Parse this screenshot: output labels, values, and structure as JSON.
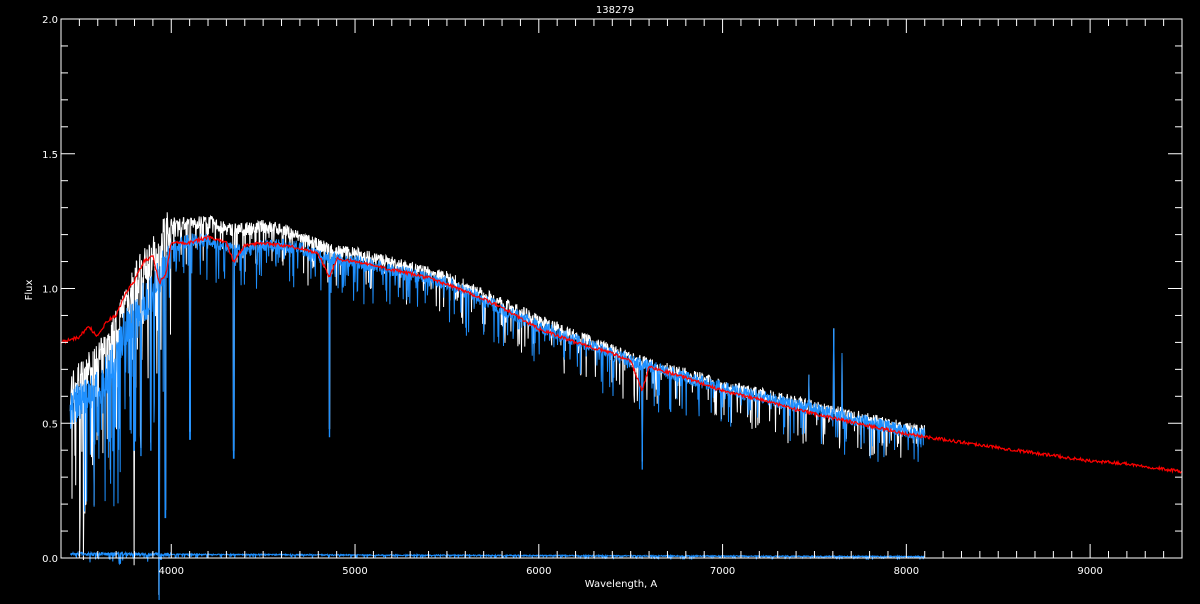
{
  "chart_data": {
    "type": "line",
    "title": "138279",
    "xlabel": "Wavelength, A",
    "ylabel": "Flux",
    "xlim": [
      3400,
      9500
    ],
    "ylim": [
      0.0,
      2.0
    ],
    "x_ticks": [
      "4000",
      "5000",
      "6000",
      "7000",
      "8000",
      "9000"
    ],
    "y_ticks": [
      "0.0",
      "0.5",
      "1.0",
      "1.5",
      "2.0"
    ],
    "grid": false,
    "background": "#000000",
    "series": [
      {
        "color": "#ff0000",
        "x": [
          3400,
          3500,
          3550,
          3600,
          3650,
          3700,
          3750,
          3800,
          3850,
          3900,
          3934,
          3970,
          4000,
          4102,
          4200,
          4300,
          4340,
          4400,
          4500,
          4600,
          4700,
          4800,
          4861,
          4900,
          5000,
          5200,
          5400,
          5600,
          5800,
          6000,
          6200,
          6400,
          6500,
          6563,
          6600,
          6800,
          7000,
          7200,
          7400,
          7600,
          7800,
          8000,
          8200,
          8400,
          8600,
          8800,
          9000,
          9200,
          9500
        ],
        "y": [
          0.8,
          0.82,
          0.86,
          0.82,
          0.88,
          0.9,
          0.98,
          1.03,
          1.1,
          1.12,
          1.02,
          1.05,
          1.17,
          1.17,
          1.19,
          1.17,
          1.1,
          1.16,
          1.17,
          1.16,
          1.15,
          1.13,
          1.04,
          1.11,
          1.1,
          1.07,
          1.04,
          0.99,
          0.93,
          0.85,
          0.8,
          0.76,
          0.73,
          0.62,
          0.71,
          0.67,
          0.62,
          0.59,
          0.55,
          0.52,
          0.49,
          0.46,
          0.44,
          0.42,
          0.4,
          0.38,
          0.36,
          0.35,
          0.32
        ]
      },
      {
        "color": "#ffffff",
        "x": [
          3450,
          3500,
          3600,
          3700,
          3750,
          3800,
          3850,
          3900,
          4000,
          4100,
          4200,
          4300,
          4400,
          4500,
          4600,
          4700,
          4800,
          4900,
          5000,
          5500,
          6000,
          6500,
          7000,
          7500,
          8000,
          8100
        ],
        "y": [
          0.62,
          0.66,
          0.72,
          0.85,
          0.95,
          1.02,
          1.08,
          1.12,
          1.24,
          1.24,
          1.25,
          1.22,
          1.22,
          1.23,
          1.22,
          1.19,
          1.16,
          1.14,
          1.13,
          1.04,
          0.88,
          0.74,
          0.64,
          0.56,
          0.48,
          0.47
        ]
      },
      {
        "color": "#1e90ff",
        "x": [
          3450,
          3500,
          3600,
          3700,
          3750,
          3800,
          3850,
          3900,
          4000,
          4100,
          4200,
          4300,
          4400,
          4500,
          4600,
          4700,
          4800,
          4900,
          5000,
          5500,
          6000,
          6500,
          7000,
          7500,
          8000,
          8100
        ],
        "y": [
          0.55,
          0.58,
          0.62,
          0.75,
          0.85,
          0.9,
          0.95,
          0.98,
          1.15,
          1.18,
          1.18,
          1.15,
          1.14,
          1.16,
          1.16,
          1.15,
          1.12,
          1.11,
          1.1,
          1.02,
          0.86,
          0.73,
          0.63,
          0.55,
          0.47,
          0.46
        ]
      },
      {
        "color": "#1e90ff",
        "x": [
          3450,
          4000,
          5000,
          6000,
          7000,
          8100
        ],
        "y": [
          0.016,
          0.014,
          0.011,
          0.009,
          0.007,
          0.005
        ]
      }
    ],
    "absorption_lines": [
      {
        "x": 3798,
        "y": 0.4
      },
      {
        "x": 3835,
        "y": 0.38
      },
      {
        "x": 3889,
        "y": 0.4
      },
      {
        "x": 3934,
        "y": 0.13
      },
      {
        "x": 3968,
        "y": 0.15
      },
      {
        "x": 4102,
        "y": 0.44
      },
      {
        "x": 4340,
        "y": 0.37
      },
      {
        "x": 4861,
        "y": 0.45
      },
      {
        "x": 5890,
        "y": 0.85
      },
      {
        "x": 6563,
        "y": 0.33
      },
      {
        "x": 7150,
        "y": 0.55
      }
    ],
    "emission_lines": [
      {
        "x": 7470,
        "y": 0.68
      },
      {
        "x": 7605,
        "y": 0.85
      },
      {
        "x": 7650,
        "y": 0.76
      }
    ]
  }
}
